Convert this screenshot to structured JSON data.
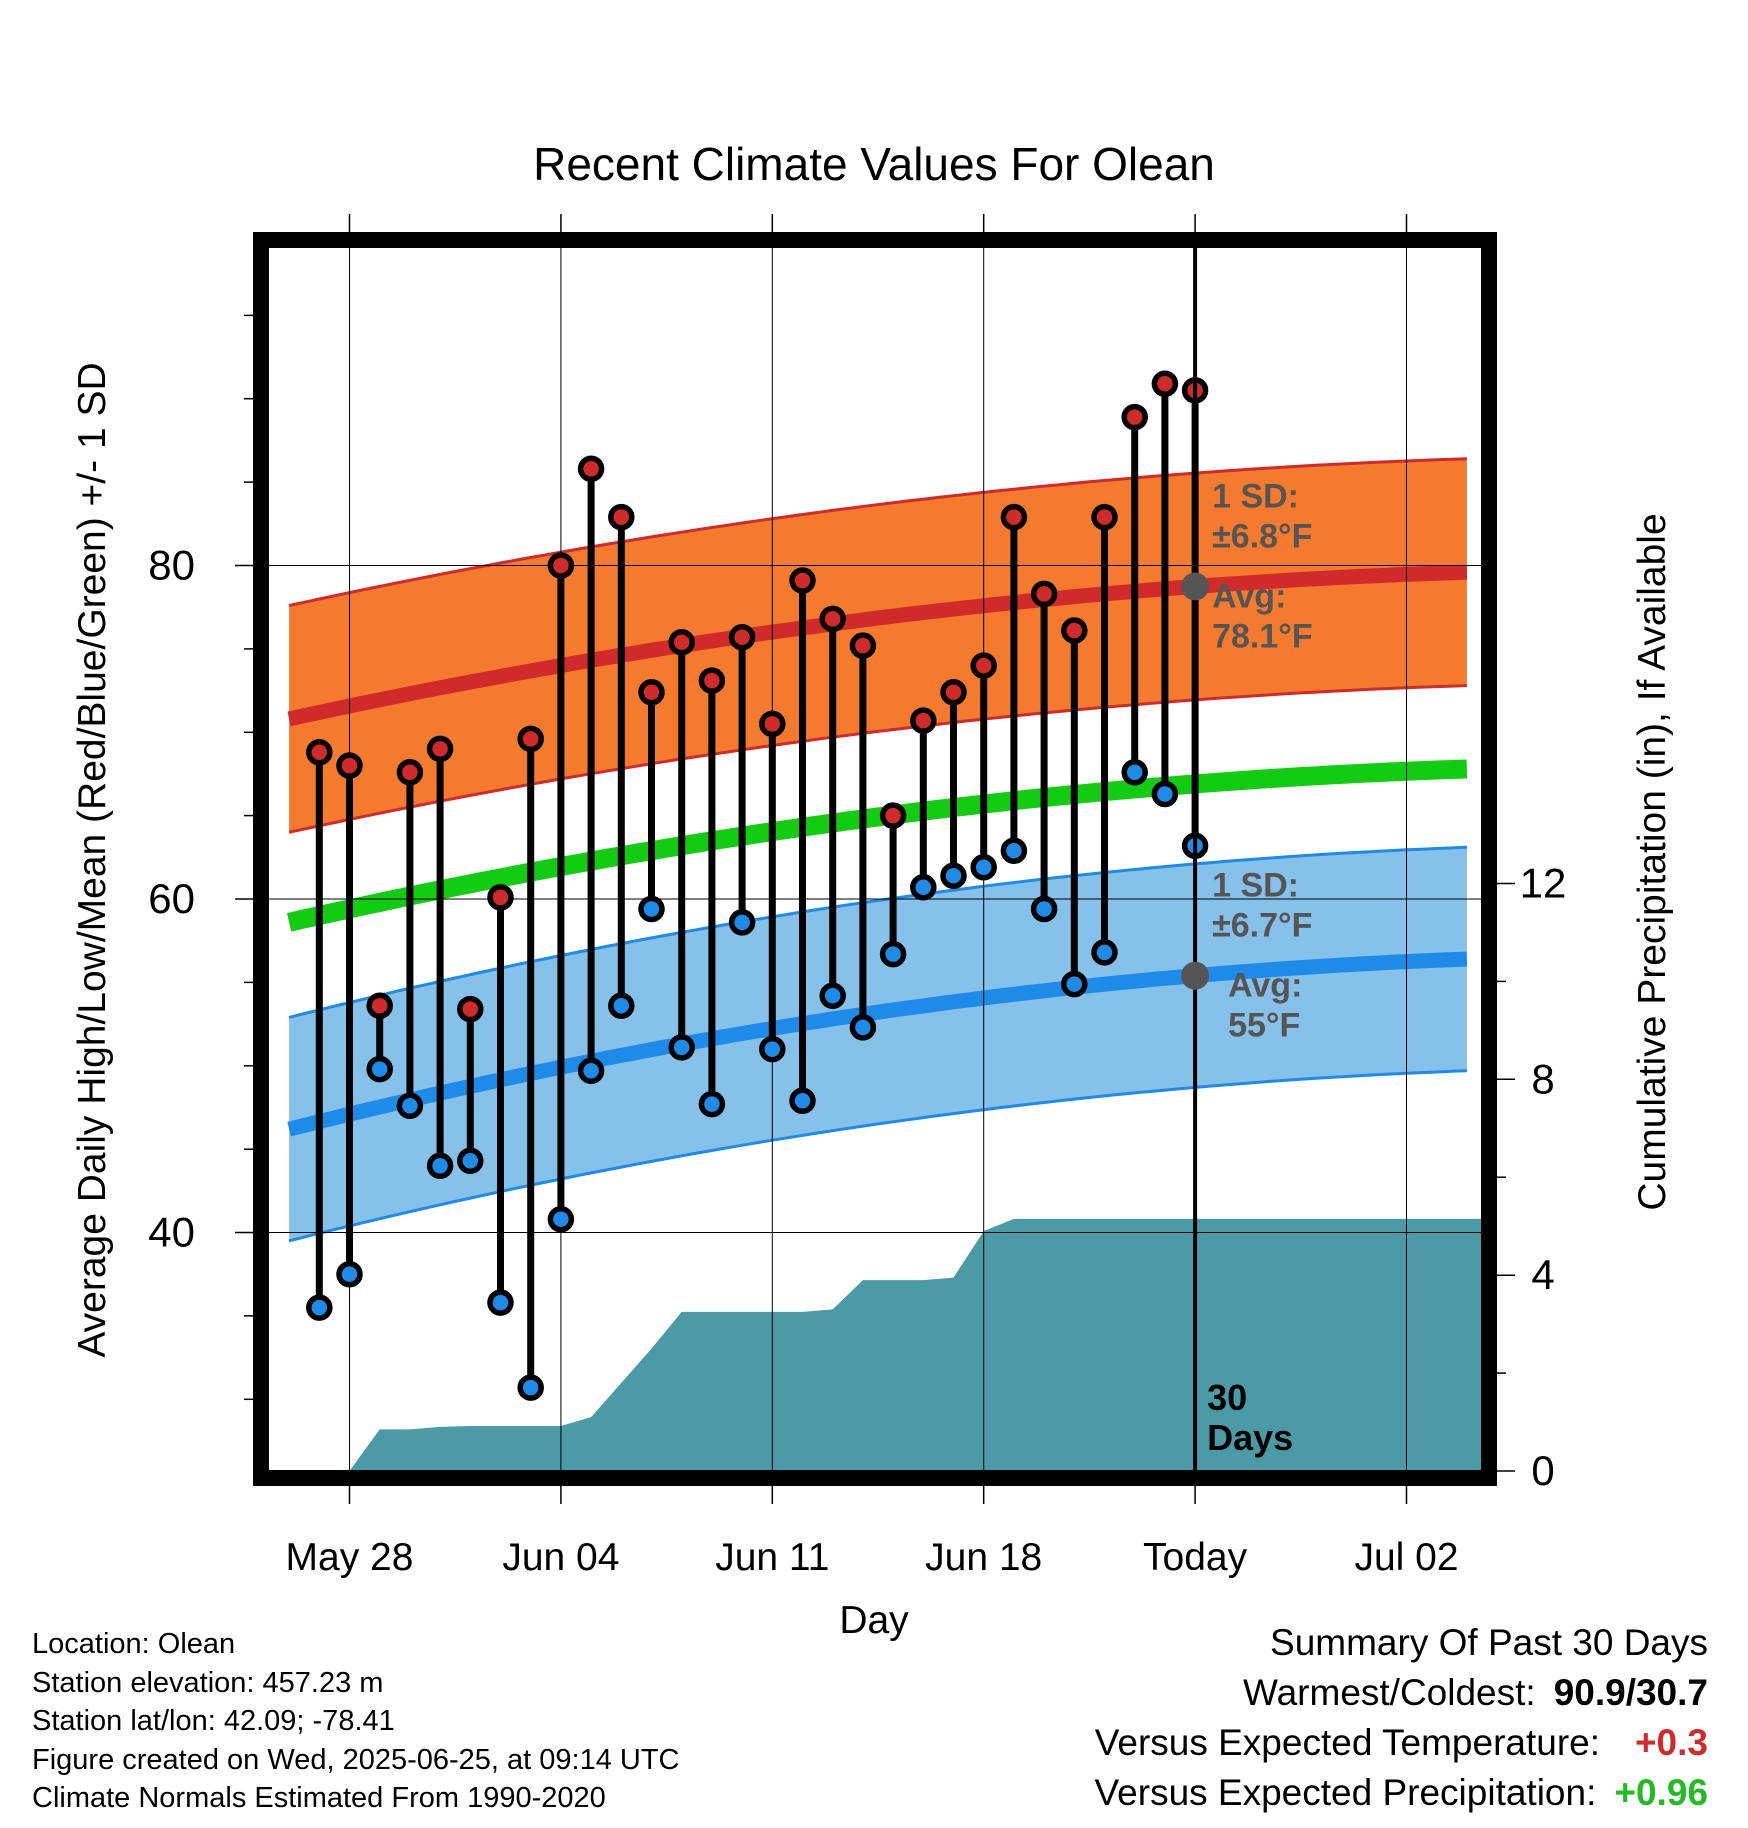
{
  "chart_data": {
    "type": "line",
    "title": "Recent Climate Values For Olean",
    "xlabel": "Day",
    "ylabel": "Average Daily High/Low/Mean (Red/Blue/Green) +/- 1 SD",
    "y2label": "Cumulative Precipitation (in), If Available",
    "x_tick_labels": [
      "May 28",
      "Jun 04",
      "Jun 11",
      "Jun 18",
      "Today",
      "Jul 02"
    ],
    "x_tick_days": [
      2,
      9,
      16,
      23,
      30,
      37
    ],
    "xlim": [
      -0.7,
      39.5
    ],
    "ylim": [
      25.7,
      99.1
    ],
    "y_ticks": [
      40,
      60,
      80
    ],
    "y2_ticks": [
      0,
      4,
      8,
      12
    ],
    "y2lim": [
      0,
      25
    ],
    "grid": true,
    "today_day": 30,
    "today_label_lines": [
      "30",
      "Days"
    ],
    "highs": [
      68.8,
      68.0,
      53.6,
      67.6,
      69.0,
      53.4,
      60.1,
      69.6,
      80.0,
      85.8,
      82.9,
      72.4,
      75.4,
      73.1,
      75.7,
      70.5,
      79.1,
      76.8,
      75.2,
      65.0,
      70.7,
      72.4,
      74.0,
      82.9,
      78.3,
      76.1,
      82.9,
      88.9,
      90.9,
      90.5
    ],
    "lows": [
      35.5,
      37.5,
      49.8,
      47.6,
      44.0,
      44.3,
      35.8,
      30.7,
      40.8,
      49.7,
      53.6,
      59.4,
      51.1,
      47.7,
      58.6,
      51.0,
      47.9,
      54.2,
      52.3,
      56.7,
      60.7,
      61.4,
      61.9,
      62.9,
      59.4,
      54.9,
      56.8,
      67.6,
      66.3,
      63.2
    ],
    "normal_high": {
      "day_start": 0,
      "day_end": 39,
      "start": 70.8,
      "end": 79.6,
      "sd": 6.8,
      "label_sd": "1 SD:",
      "label_sd_value": "±6.8°F",
      "label_avg": "Avg:",
      "label_avg_value": "78.1°F"
    },
    "normal_low": {
      "day_start": 0,
      "day_end": 39,
      "start": 46.2,
      "end": 56.4,
      "sd": 6.7,
      "label_sd": "1 SD:",
      "label_sd_value": "±6.7°F",
      "label_avg": "Avg:",
      "label_avg_value": "55°F"
    },
    "normal_mean": {
      "day_start": 0,
      "day_end": 39,
      "start": 58.6,
      "end": 67.8
    },
    "precip_cumulative": [
      [
        2.0,
        0.0
      ],
      [
        3.0,
        0.85
      ],
      [
        4.0,
        0.85
      ],
      [
        5.0,
        0.9
      ],
      [
        6.0,
        0.92
      ],
      [
        7.0,
        0.92
      ],
      [
        8.0,
        0.92
      ],
      [
        9.0,
        0.92
      ],
      [
        10.0,
        1.1
      ],
      [
        11.0,
        1.8
      ],
      [
        12.0,
        2.5
      ],
      [
        13.0,
        3.25
      ],
      [
        14.0,
        3.25
      ],
      [
        15.0,
        3.25
      ],
      [
        16.0,
        3.25
      ],
      [
        17.0,
        3.25
      ],
      [
        18.0,
        3.3
      ],
      [
        19.0,
        3.9
      ],
      [
        20.0,
        3.9
      ],
      [
        21.0,
        3.9
      ],
      [
        22.0,
        3.95
      ],
      [
        23.0,
        4.9
      ],
      [
        24.0,
        5.15
      ],
      [
        39.5,
        5.15
      ]
    ],
    "colors": {
      "high_band": "#f47a2e",
      "high_line": "#d12a2a",
      "low_band": "#85c1e8",
      "low_line": "#1e8be8",
      "mean_line": "#11cc11",
      "precip": "#4a9ba5",
      "high_dot": "#d12a2a",
      "low_dot": "#1e8be8",
      "stem": "#000000",
      "avg_marker": "#555555",
      "annotation": "#555555"
    }
  },
  "footer": {
    "location": "Location: Olean",
    "elevation": "Station elevation: 457.23 m",
    "latlon": "Station lat/lon: 42.09; -78.41",
    "created": "Figure created on Wed, 2025-06-25, at 09:14 UTC",
    "normals": "Climate Normals Estimated From 1990-2020"
  },
  "summary": {
    "title": "Summary Of Past 30 Days",
    "warm_cold_label": "Warmest/Coldest:",
    "warm_cold_value": "90.9/30.7",
    "temp_label": "Versus Expected Temperature:",
    "temp_value": "+0.3",
    "temp_color": "#d12a2a",
    "precip_label": "Versus Expected Precipitation:",
    "precip_value": "+0.96",
    "precip_color": "#22bb22"
  }
}
